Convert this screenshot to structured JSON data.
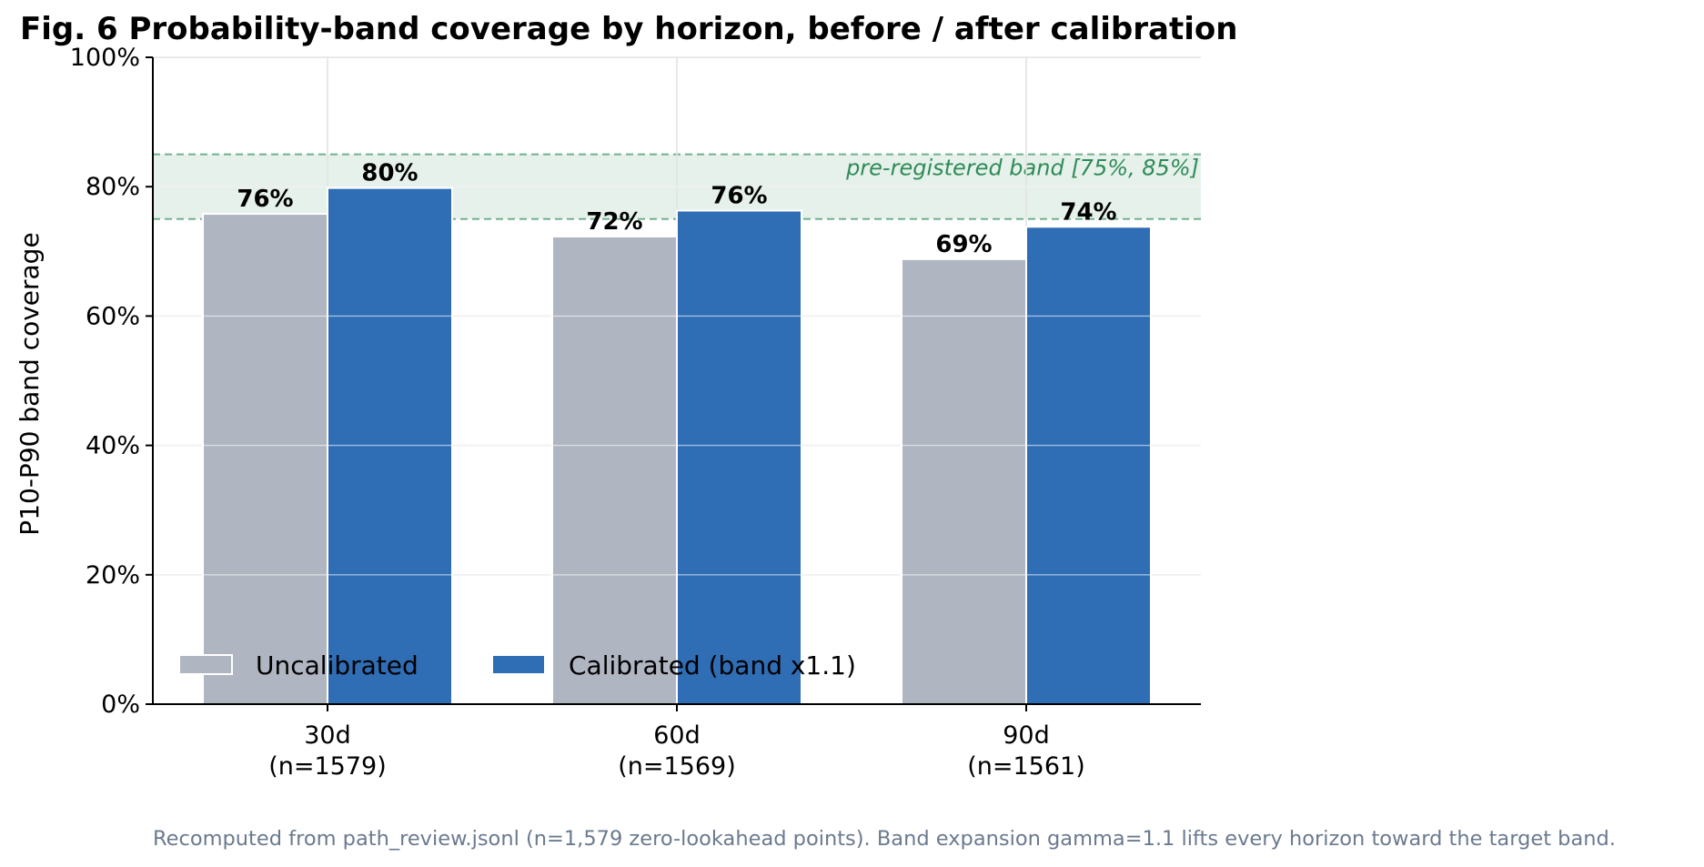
{
  "chart_data": {
    "type": "bar",
    "title": "Fig. 6  Probability-band coverage by horizon, before / after calibration",
    "ylabel": "P10-P90 band coverage",
    "xlabel": "",
    "ylim": [
      0,
      100
    ],
    "y_ticks": [
      0,
      20,
      40,
      60,
      80,
      100
    ],
    "y_tick_labels": [
      "0%",
      "20%",
      "40%",
      "60%",
      "80%",
      "100%"
    ],
    "categories": [
      {
        "label": "30d",
        "sub": "(n=1579)"
      },
      {
        "label": "60d",
        "sub": "(n=1569)"
      },
      {
        "label": "90d",
        "sub": "(n=1561)"
      }
    ],
    "series": [
      {
        "name": "Uncalibrated",
        "values": [
          75.8,
          72.3,
          68.8
        ],
        "labels": [
          "76%",
          "72%",
          "69%"
        ],
        "color": "#b0b5c2"
      },
      {
        "name": "Calibrated (band x1.1)",
        "values": [
          79.8,
          76.3,
          73.8
        ],
        "labels": [
          "80%",
          "76%",
          "74%"
        ],
        "color": "#2f6db5"
      }
    ],
    "target_band": {
      "low": 75,
      "high": 85,
      "label": "pre-registered band [75%, 85%]",
      "color": "#2e8b57"
    },
    "grid": true,
    "legend": "lower-left"
  },
  "caption": "Recomputed from path_review.jsonl (n=1,579 zero-lookahead points). Band expansion gamma=1.1 lifts every horizon toward the target band."
}
